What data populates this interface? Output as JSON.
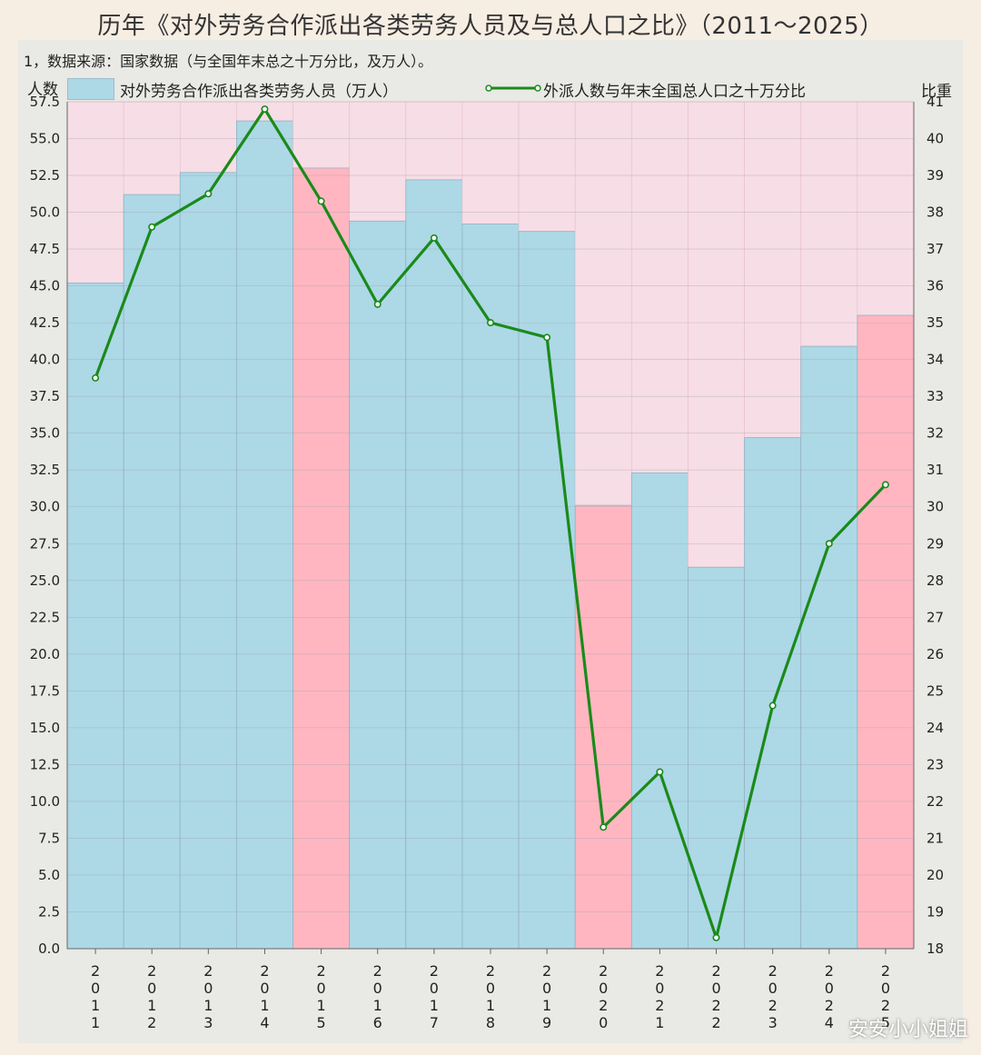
{
  "title": "历年《对外劳务合作派出各类劳务人员及与总人口之比》（2011～2025）",
  "source_note": "1，数据来源：国家数据（与全国年末总之十万分比，及万人）。",
  "left_axis_title": "人数",
  "right_axis_title": "比重",
  "legend": {
    "bar_label": "对外劳务合作派出各类劳务人员（万人）",
    "line_label": "外派人数与年末全国总人口之十万分比"
  },
  "watermark": "安安小小姐姐",
  "colors": {
    "bar_normal": "#add8e6",
    "bar_highlight": "#ffb6c1",
    "bar_background": "#f7dde5",
    "plot_background": "#fbdae6",
    "line": "#1a8a1a",
    "marker_fill": "#ffffff"
  },
  "chart_data": {
    "type": "bar",
    "categories": [
      "2011",
      "2012",
      "2013",
      "2014",
      "2015",
      "2016",
      "2017",
      "2018",
      "2019",
      "2020",
      "2021",
      "2022",
      "2023",
      "2024",
      "2025"
    ],
    "category_labels": [
      [
        "2",
        "0",
        "1",
        "1"
      ],
      [
        "2",
        "0",
        "1",
        "2"
      ],
      [
        "2",
        "0",
        "1",
        "3"
      ],
      [
        "2",
        "0",
        "1",
        "4"
      ],
      [
        "2",
        "0",
        "1",
        "5"
      ],
      [
        "2",
        "0",
        "1",
        "6"
      ],
      [
        "2",
        "0",
        "1",
        "7"
      ],
      [
        "2",
        "0",
        "1",
        "8"
      ],
      [
        "2",
        "0",
        "1",
        "9"
      ],
      [
        "2",
        "0",
        "2",
        "0"
      ],
      [
        "2",
        "0",
        "2",
        "1"
      ],
      [
        "2",
        "0",
        "2",
        "2"
      ],
      [
        "2",
        "0",
        "2",
        "3"
      ],
      [
        "2",
        "0",
        "2",
        "4"
      ],
      [
        "2",
        "0",
        "2",
        "5"
      ]
    ],
    "series": [
      {
        "name": "对外劳务合作派出各类劳务人员（万人）",
        "type": "bar",
        "axis": "left",
        "values": [
          45.2,
          51.2,
          52.7,
          56.2,
          53.0,
          49.4,
          52.2,
          49.2,
          48.7,
          30.1,
          32.3,
          25.9,
          34.7,
          40.9,
          43.0
        ],
        "highlighted": [
          "2015",
          "2020",
          "2025"
        ]
      },
      {
        "name": "外派人数与年末全国总人口之十万分比",
        "type": "line",
        "axis": "right",
        "values": [
          33.5,
          37.6,
          38.5,
          40.8,
          38.3,
          35.5,
          37.3,
          35.0,
          34.6,
          21.3,
          22.8,
          18.3,
          24.6,
          29.0,
          30.6
        ]
      }
    ],
    "left_axis": {
      "min": 0,
      "max": 57.5,
      "ticks": [
        "0.0",
        "2.5",
        "5.0",
        "7.5",
        "10.0",
        "12.5",
        "15.0",
        "17.5",
        "20.0",
        "22.5",
        "25.0",
        "27.5",
        "30.0",
        "32.5",
        "35.0",
        "37.5",
        "40.0",
        "42.5",
        "45.0",
        "47.5",
        "50.0",
        "52.5",
        "55.0",
        "57.5"
      ]
    },
    "right_axis": {
      "min": 18,
      "max": 41,
      "ticks": [
        "18",
        "19",
        "20",
        "21",
        "22",
        "23",
        "24",
        "25",
        "26",
        "27",
        "28",
        "29",
        "30",
        "31",
        "32",
        "33",
        "34",
        "35",
        "36",
        "37",
        "38",
        "39",
        "40",
        "41"
      ]
    },
    "grid": true,
    "legend_position": "top"
  }
}
